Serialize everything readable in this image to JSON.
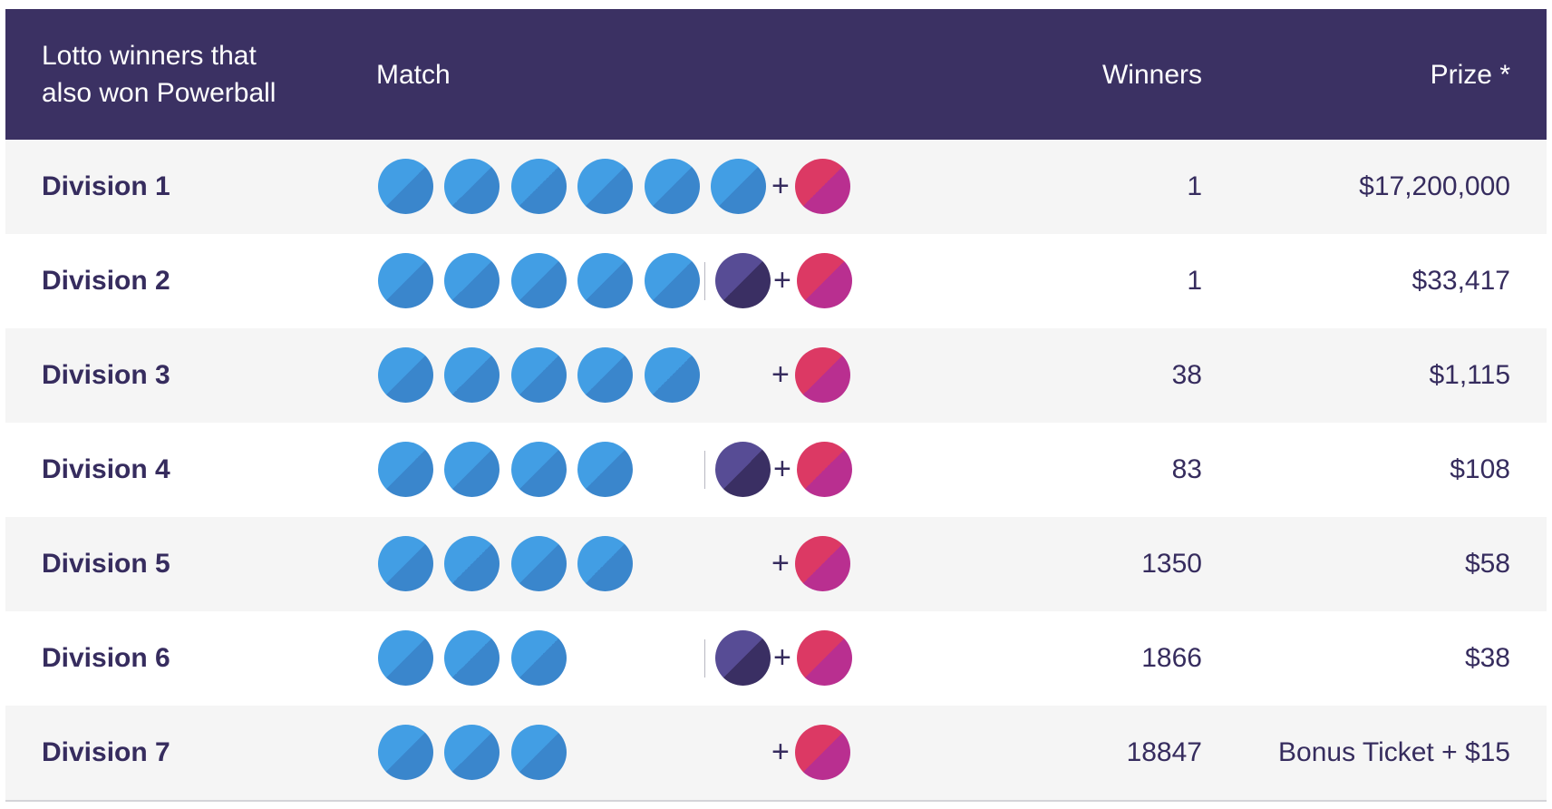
{
  "table": {
    "headers": {
      "division": "Lotto winners that also won Powerball",
      "match": "Match",
      "winners": "Winners",
      "prize": "Prize *"
    },
    "rows": [
      {
        "division": "Division 1",
        "main_balls": 6,
        "bonus": false,
        "powerball": true,
        "winners": "1",
        "prize": "$17,200,000"
      },
      {
        "division": "Division 2",
        "main_balls": 5,
        "bonus": true,
        "powerball": true,
        "winners": "1",
        "prize": "$33,417"
      },
      {
        "division": "Division 3",
        "main_balls": 5,
        "bonus": false,
        "powerball": true,
        "winners": "38",
        "prize": "$1,115"
      },
      {
        "division": "Division 4",
        "main_balls": 4,
        "bonus": true,
        "powerball": true,
        "winners": "83",
        "prize": "$108"
      },
      {
        "division": "Division 5",
        "main_balls": 4,
        "bonus": false,
        "powerball": true,
        "winners": "1350",
        "prize": "$58"
      },
      {
        "division": "Division 6",
        "main_balls": 3,
        "bonus": true,
        "powerball": true,
        "winners": "1866",
        "prize": "$38"
      },
      {
        "division": "Division 7",
        "main_balls": 3,
        "bonus": false,
        "powerball": true,
        "winners": "18847",
        "prize": "Bonus Ticket + $15"
      }
    ],
    "plus_symbol": "+",
    "colors": {
      "header_bg": "#3b3163",
      "main_ball": "#429ee4",
      "bonus_ball": "#574c95",
      "powerball": "#dc3964",
      "text": "#362c5e"
    }
  }
}
